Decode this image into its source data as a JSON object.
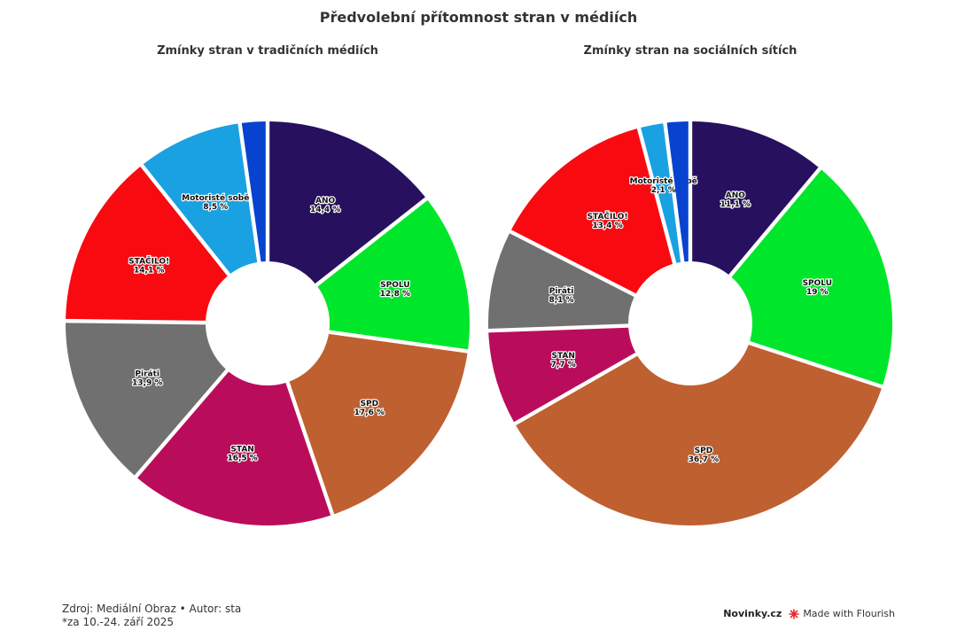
{
  "title": "Předvolební přítomnost stran v médiích",
  "footer": {
    "source": "Zdroj: Mediální Obraz • Autor: sta",
    "note": "*za 10.-24. září 2025"
  },
  "brand": {
    "publisher": "Novinky.cz",
    "made_with": "Made with Flourish",
    "icon": "flourish-star-icon",
    "icon_color": "#e8262e"
  },
  "chart_data": [
    {
      "type": "pie",
      "title": "Zmínky stran v tradičních médiích",
      "categories": [
        "ANO",
        "SPOLU",
        "SPD",
        "STAN",
        "Piráti",
        "STAČILO!",
        "Motoristé sobě",
        ""
      ],
      "values": [
        14.4,
        12.8,
        17.6,
        16.5,
        13.9,
        14.1,
        8.5,
        2.2
      ],
      "value_labels": [
        "14,4 %",
        "12,8 %",
        "17,6 %",
        "16,5 %",
        "13,9 %",
        "14,1 %",
        "8,5 %",
        ""
      ],
      "colors": [
        "#27105e",
        "#00e62b",
        "#bf6030",
        "#b90d5c",
        "#707070",
        "#f90a10",
        "#1aa1e2",
        "#0843cf"
      ]
    },
    {
      "type": "pie",
      "title": "Zmínky stran na sociálních sítích",
      "categories": [
        "ANO",
        "SPOLU",
        "SPD",
        "STAN",
        "Piráti",
        "STAČILO!",
        "Motoristé sobě",
        ""
      ],
      "values": [
        11.1,
        19,
        36.7,
        7.7,
        8.1,
        13.4,
        2.1,
        2.0
      ],
      "value_labels": [
        "11,1 %",
        "19 %",
        "36,7 %",
        "7,7 %",
        "8,1 %",
        "13,4 %",
        "2,1 %",
        ""
      ],
      "colors": [
        "#27105e",
        "#00e62b",
        "#bf6030",
        "#b90d5c",
        "#707070",
        "#f90a10",
        "#1aa1e2",
        "#0843cf"
      ]
    }
  ]
}
